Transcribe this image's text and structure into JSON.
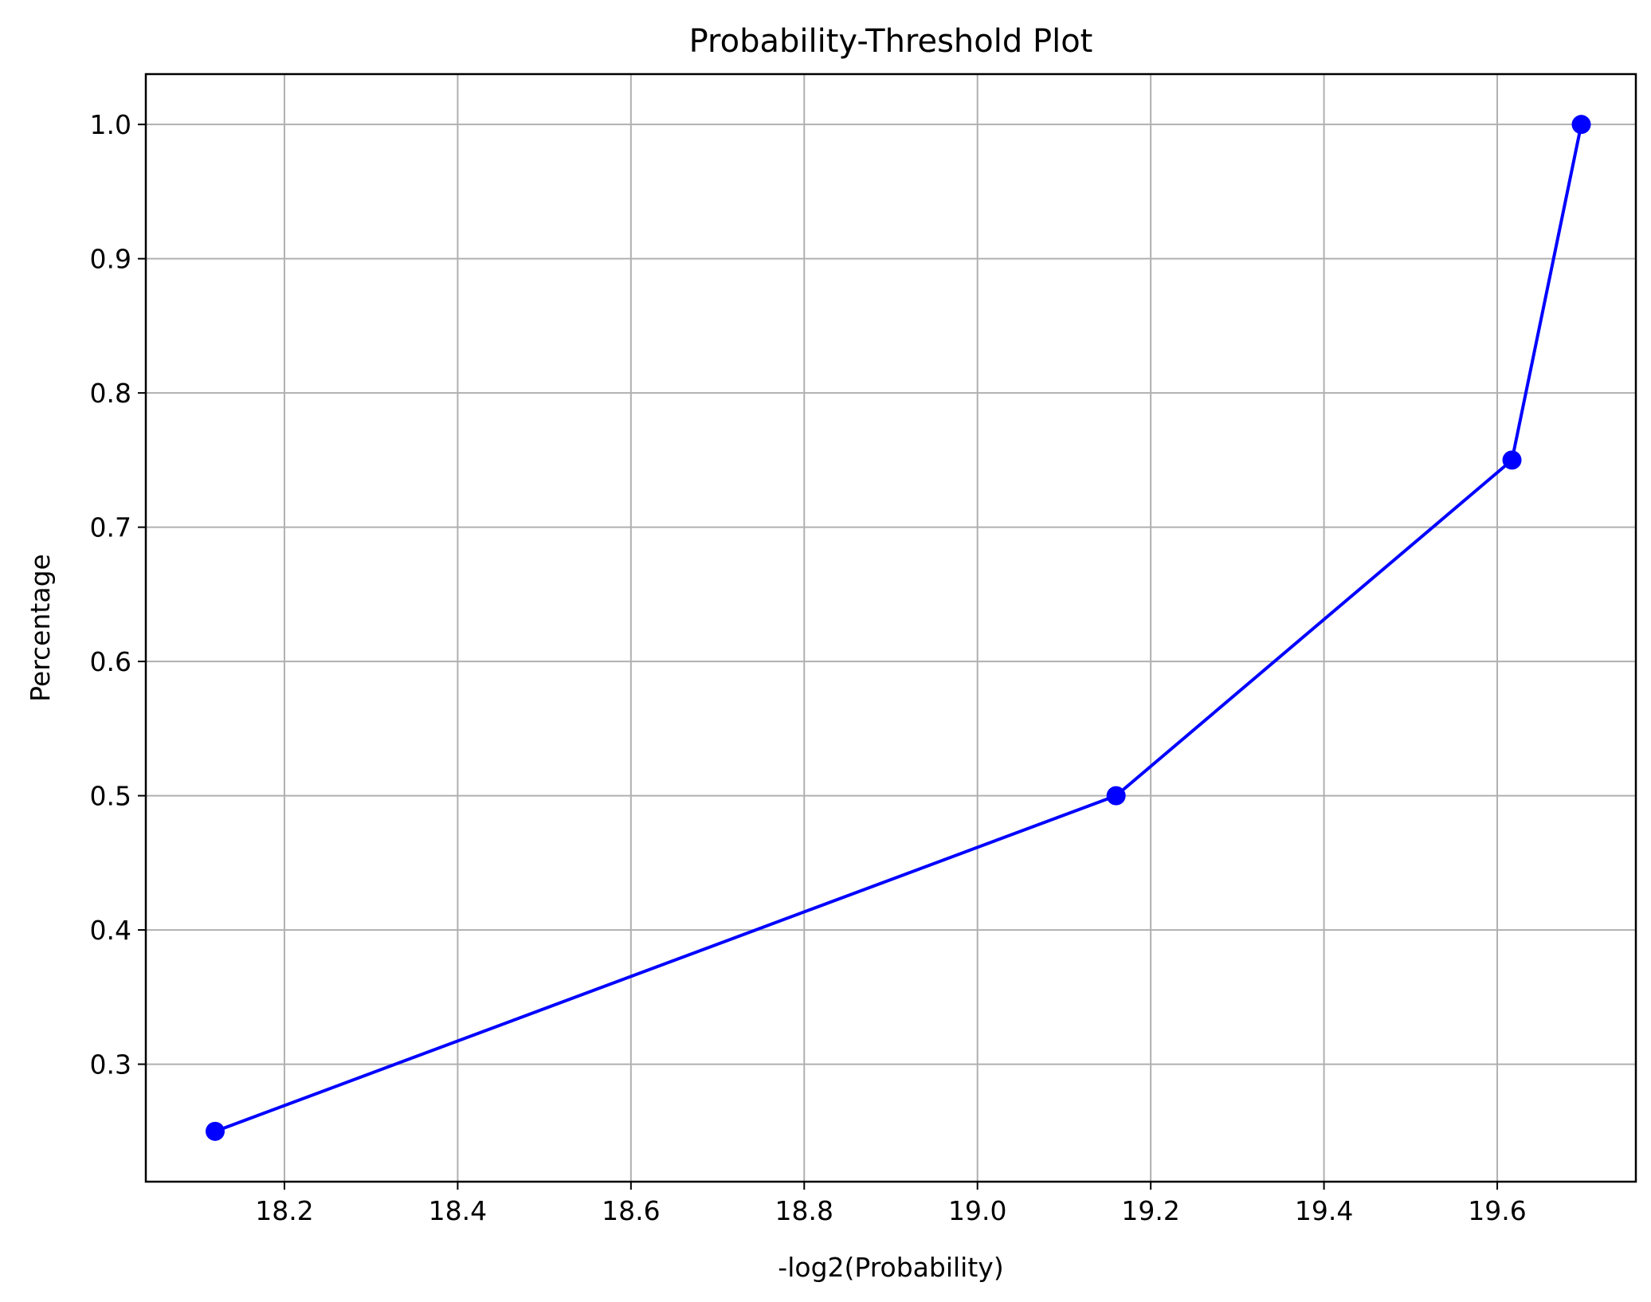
{
  "chart_data": {
    "type": "line",
    "title": "Probability-Threshold Plot",
    "xlabel": "-log2(Probability)",
    "ylabel": "Percentage",
    "xlim": [
      18.04,
      19.76
    ],
    "ylim": [
      0.2125,
      1.0375
    ],
    "x_ticks": [
      18.2,
      18.4,
      18.6,
      18.8,
      19.0,
      19.2,
      19.4,
      19.6
    ],
    "x_tick_labels": [
      "18.2",
      "18.4",
      "18.6",
      "18.8",
      "19.0",
      "19.2",
      "19.4",
      "19.6"
    ],
    "y_ticks": [
      0.3,
      0.4,
      0.5,
      0.6,
      0.7,
      0.8,
      0.9,
      1.0
    ],
    "y_tick_labels": [
      "0.3",
      "0.4",
      "0.5",
      "0.6",
      "0.7",
      "0.8",
      "0.9",
      "1.0"
    ],
    "grid": true,
    "series": [
      {
        "color": "#0000ff",
        "marker": "circle",
        "x": [
          18.12,
          19.16,
          19.617,
          19.697
        ],
        "y": [
          0.25,
          0.5,
          0.75,
          1.0
        ]
      }
    ]
  },
  "colors": {
    "grid": "#b0b0b0",
    "axes": "#000000",
    "background": "#ffffff"
  }
}
